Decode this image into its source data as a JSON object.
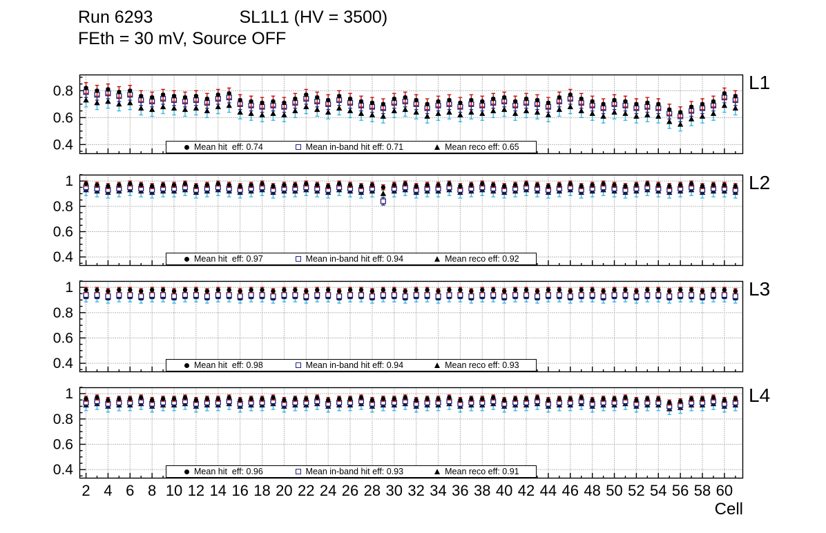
{
  "header": {
    "run": "Run 6293",
    "chamber": "SL1L1 (HV = 3500)",
    "conditions": "FEth = 30 mV, Source OFF"
  },
  "chart_data": {
    "type": "scatter",
    "title": "Run 6293 SL1L1 (HV = 3500) — FEth = 30 mV, Source OFF",
    "xlabel": "Cell",
    "x_start_cell": 2,
    "xtick_labels": [
      2,
      4,
      6,
      8,
      10,
      12,
      14,
      16,
      18,
      20,
      22,
      24,
      26,
      28,
      30,
      32,
      34,
      36,
      38,
      40,
      42,
      44,
      46,
      48,
      50,
      52,
      54,
      56,
      58,
      60
    ],
    "grid": "dotted",
    "series_meta": [
      {
        "key": "hit",
        "name": "Mean hit eff",
        "marker": "filled-circle",
        "marker_color": "#000000",
        "error_color": "#bf0000"
      },
      {
        "key": "inband",
        "name": "Mean in-band hit eff",
        "marker": "open-square",
        "marker_color": "#202078",
        "error_color": "#202078"
      },
      {
        "key": "reco",
        "name": "Mean reco eff",
        "marker": "filled-triangle",
        "marker_color": "#000000",
        "error_color": "#2fb2dd"
      }
    ],
    "panels": [
      {
        "label": "L1",
        "ylim": [
          0.33,
          0.92
        ],
        "yticks": [
          0.4,
          0.6,
          0.8
        ],
        "legend": {
          "hit": "Mean hit  eff: 0.74",
          "inband": "Mean in-band hit eff: 0.71",
          "reco": "Mean reco eff: 0.65"
        },
        "errors": {
          "hit": 0.04,
          "inband": 0.04,
          "reco": 0.05
        },
        "values": {
          "hit": [
            0.82,
            0.8,
            0.81,
            0.79,
            0.8,
            0.76,
            0.75,
            0.77,
            0.76,
            0.75,
            0.76,
            0.74,
            0.77,
            0.78,
            0.73,
            0.72,
            0.71,
            0.72,
            0.71,
            0.74,
            0.77,
            0.75,
            0.73,
            0.76,
            0.74,
            0.72,
            0.71,
            0.7,
            0.74,
            0.75,
            0.73,
            0.7,
            0.72,
            0.73,
            0.71,
            0.73,
            0.72,
            0.74,
            0.75,
            0.72,
            0.74,
            0.73,
            0.71,
            0.75,
            0.77,
            0.74,
            0.72,
            0.7,
            0.73,
            0.72,
            0.7,
            0.71,
            0.7,
            0.66,
            0.64,
            0.68,
            0.7,
            0.72,
            0.78,
            0.76
          ],
          "inband": [
            0.79,
            0.77,
            0.78,
            0.76,
            0.77,
            0.73,
            0.72,
            0.74,
            0.73,
            0.72,
            0.73,
            0.71,
            0.74,
            0.75,
            0.7,
            0.69,
            0.68,
            0.69,
            0.68,
            0.71,
            0.74,
            0.72,
            0.7,
            0.73,
            0.71,
            0.69,
            0.68,
            0.67,
            0.71,
            0.72,
            0.7,
            0.67,
            0.69,
            0.7,
            0.68,
            0.7,
            0.69,
            0.71,
            0.72,
            0.69,
            0.71,
            0.7,
            0.68,
            0.72,
            0.74,
            0.71,
            0.69,
            0.67,
            0.7,
            0.69,
            0.67,
            0.68,
            0.67,
            0.63,
            0.61,
            0.65,
            0.67,
            0.69,
            0.75,
            0.73
          ],
          "reco": [
            0.73,
            0.71,
            0.72,
            0.7,
            0.71,
            0.67,
            0.66,
            0.68,
            0.67,
            0.66,
            0.67,
            0.65,
            0.68,
            0.69,
            0.64,
            0.63,
            0.62,
            0.63,
            0.62,
            0.65,
            0.68,
            0.66,
            0.64,
            0.67,
            0.65,
            0.63,
            0.62,
            0.61,
            0.65,
            0.66,
            0.64,
            0.61,
            0.63,
            0.64,
            0.62,
            0.64,
            0.63,
            0.65,
            0.66,
            0.63,
            0.65,
            0.64,
            0.62,
            0.66,
            0.68,
            0.65,
            0.63,
            0.61,
            0.64,
            0.63,
            0.61,
            0.62,
            0.61,
            0.57,
            0.55,
            0.59,
            0.61,
            0.63,
            0.69,
            0.67
          ]
        }
      },
      {
        "label": "L2",
        "ylim": [
          0.33,
          1.05
        ],
        "yticks": [
          0.4,
          0.6,
          0.8,
          1.0
        ],
        "legend": {
          "hit": "Mean hit  eff: 0.97",
          "inband": "Mean in-band hit eff: 0.94",
          "reco": "Mean reco eff: 0.92"
        },
        "errors": {
          "hit": 0.02,
          "inband": 0.03,
          "reco": 0.045
        },
        "values": {
          "hit": [
            0.98,
            0.97,
            0.96,
            0.97,
            0.98,
            0.97,
            0.96,
            0.97,
            0.97,
            0.98,
            0.96,
            0.97,
            0.98,
            0.97,
            0.96,
            0.97,
            0.98,
            0.96,
            0.97,
            0.97,
            0.98,
            0.97,
            0.96,
            0.98,
            0.97,
            0.96,
            0.97,
            0.95,
            0.97,
            0.98,
            0.96,
            0.97,
            0.97,
            0.98,
            0.96,
            0.97,
            0.98,
            0.97,
            0.96,
            0.97,
            0.98,
            0.97,
            0.96,
            0.97,
            0.98,
            0.96,
            0.97,
            0.98,
            0.97,
            0.96,
            0.97,
            0.98,
            0.97,
            0.96,
            0.97,
            0.98,
            0.96,
            0.97,
            0.97,
            0.96
          ],
          "inband": [
            0.95,
            0.94,
            0.93,
            0.94,
            0.95,
            0.94,
            0.93,
            0.94,
            0.94,
            0.95,
            0.93,
            0.94,
            0.95,
            0.94,
            0.93,
            0.94,
            0.95,
            0.93,
            0.94,
            0.94,
            0.95,
            0.94,
            0.93,
            0.95,
            0.94,
            0.93,
            0.94,
            0.84,
            0.94,
            0.95,
            0.93,
            0.94,
            0.94,
            0.95,
            0.93,
            0.94,
            0.95,
            0.94,
            0.93,
            0.94,
            0.95,
            0.94,
            0.93,
            0.94,
            0.95,
            0.93,
            0.94,
            0.95,
            0.94,
            0.93,
            0.94,
            0.95,
            0.94,
            0.93,
            0.94,
            0.95,
            0.93,
            0.94,
            0.94,
            0.93
          ],
          "reco": [
            0.93,
            0.92,
            0.91,
            0.92,
            0.93,
            0.92,
            0.91,
            0.92,
            0.92,
            0.93,
            0.91,
            0.92,
            0.93,
            0.92,
            0.91,
            0.92,
            0.93,
            0.91,
            0.92,
            0.92,
            0.93,
            0.92,
            0.91,
            0.93,
            0.92,
            0.91,
            0.92,
            0.9,
            0.92,
            0.93,
            0.91,
            0.92,
            0.92,
            0.93,
            0.91,
            0.92,
            0.93,
            0.92,
            0.91,
            0.92,
            0.93,
            0.92,
            0.91,
            0.92,
            0.93,
            0.91,
            0.92,
            0.93,
            0.92,
            0.91,
            0.92,
            0.93,
            0.92,
            0.91,
            0.92,
            0.93,
            0.91,
            0.92,
            0.92,
            0.91
          ]
        }
      },
      {
        "label": "L3",
        "ylim": [
          0.33,
          1.05
        ],
        "yticks": [
          0.4,
          0.6,
          0.8,
          1.0
        ],
        "legend": {
          "hit": "Mean hit  eff: 0.98",
          "inband": "Mean in-band hit eff: 0.94",
          "reco": "Mean reco eff: 0.93"
        },
        "errors": {
          "hit": 0.02,
          "inband": 0.03,
          "reco": 0.045
        },
        "values": {
          "hit": [
            0.98,
            0.98,
            0.97,
            0.98,
            0.98,
            0.97,
            0.98,
            0.98,
            0.97,
            0.98,
            0.98,
            0.97,
            0.98,
            0.98,
            0.97,
            0.98,
            0.98,
            0.97,
            0.98,
            0.98,
            0.97,
            0.98,
            0.98,
            0.97,
            0.98,
            0.98,
            0.97,
            0.98,
            0.98,
            0.97,
            0.98,
            0.98,
            0.97,
            0.98,
            0.98,
            0.97,
            0.98,
            0.98,
            0.97,
            0.98,
            0.98,
            0.97,
            0.98,
            0.98,
            0.97,
            0.98,
            0.98,
            0.97,
            0.98,
            0.98,
            0.97,
            0.98,
            0.98,
            0.97,
            0.98,
            0.98,
            0.97,
            0.98,
            0.98,
            0.97
          ],
          "inband": [
            0.94,
            0.94,
            0.93,
            0.94,
            0.94,
            0.93,
            0.94,
            0.94,
            0.93,
            0.94,
            0.94,
            0.93,
            0.94,
            0.94,
            0.93,
            0.94,
            0.94,
            0.93,
            0.94,
            0.94,
            0.93,
            0.94,
            0.94,
            0.93,
            0.94,
            0.94,
            0.93,
            0.94,
            0.94,
            0.93,
            0.94,
            0.94,
            0.93,
            0.94,
            0.94,
            0.93,
            0.94,
            0.94,
            0.93,
            0.94,
            0.94,
            0.93,
            0.94,
            0.94,
            0.93,
            0.94,
            0.94,
            0.93,
            0.94,
            0.94,
            0.93,
            0.94,
            0.94,
            0.93,
            0.94,
            0.94,
            0.93,
            0.94,
            0.94,
            0.93
          ],
          "reco": [
            0.93,
            0.93,
            0.92,
            0.93,
            0.93,
            0.92,
            0.93,
            0.93,
            0.92,
            0.93,
            0.93,
            0.92,
            0.93,
            0.93,
            0.92,
            0.93,
            0.93,
            0.92,
            0.93,
            0.93,
            0.92,
            0.93,
            0.93,
            0.92,
            0.93,
            0.93,
            0.92,
            0.93,
            0.93,
            0.92,
            0.93,
            0.93,
            0.92,
            0.93,
            0.93,
            0.92,
            0.93,
            0.93,
            0.92,
            0.93,
            0.93,
            0.92,
            0.93,
            0.93,
            0.92,
            0.93,
            0.93,
            0.92,
            0.93,
            0.93,
            0.92,
            0.93,
            0.93,
            0.92,
            0.93,
            0.93,
            0.92,
            0.93,
            0.93,
            0.92
          ]
        }
      },
      {
        "label": "L4",
        "ylim": [
          0.33,
          1.05
        ],
        "yticks": [
          0.4,
          0.6,
          0.8,
          1.0
        ],
        "legend": {
          "hit": "Mean hit  eff: 0.96",
          "inband": "Mean in-band hit eff: 0.93",
          "reco": "Mean reco eff: 0.91"
        },
        "errors": {
          "hit": 0.02,
          "inband": 0.03,
          "reco": 0.045
        },
        "values": {
          "hit": [
            0.96,
            0.97,
            0.95,
            0.96,
            0.96,
            0.97,
            0.95,
            0.96,
            0.96,
            0.97,
            0.95,
            0.96,
            0.96,
            0.97,
            0.95,
            0.96,
            0.96,
            0.97,
            0.95,
            0.96,
            0.96,
            0.97,
            0.95,
            0.96,
            0.96,
            0.97,
            0.95,
            0.96,
            0.96,
            0.97,
            0.95,
            0.96,
            0.96,
            0.97,
            0.95,
            0.96,
            0.96,
            0.97,
            0.95,
            0.96,
            0.96,
            0.97,
            0.95,
            0.96,
            0.96,
            0.97,
            0.95,
            0.96,
            0.96,
            0.97,
            0.95,
            0.96,
            0.96,
            0.93,
            0.94,
            0.96,
            0.96,
            0.97,
            0.95,
            0.96
          ],
          "inband": [
            0.93,
            0.94,
            0.92,
            0.93,
            0.93,
            0.94,
            0.92,
            0.93,
            0.93,
            0.94,
            0.92,
            0.93,
            0.93,
            0.94,
            0.92,
            0.93,
            0.93,
            0.94,
            0.92,
            0.93,
            0.93,
            0.94,
            0.92,
            0.93,
            0.93,
            0.94,
            0.92,
            0.93,
            0.93,
            0.94,
            0.92,
            0.93,
            0.93,
            0.94,
            0.92,
            0.93,
            0.93,
            0.94,
            0.92,
            0.93,
            0.93,
            0.94,
            0.92,
            0.93,
            0.93,
            0.94,
            0.92,
            0.93,
            0.93,
            0.94,
            0.92,
            0.93,
            0.93,
            0.9,
            0.91,
            0.93,
            0.93,
            0.94,
            0.92,
            0.93
          ],
          "reco": [
            0.91,
            0.92,
            0.9,
            0.91,
            0.91,
            0.92,
            0.9,
            0.91,
            0.91,
            0.92,
            0.9,
            0.91,
            0.91,
            0.92,
            0.9,
            0.91,
            0.91,
            0.92,
            0.9,
            0.91,
            0.91,
            0.92,
            0.9,
            0.91,
            0.91,
            0.92,
            0.9,
            0.91,
            0.91,
            0.92,
            0.9,
            0.91,
            0.91,
            0.92,
            0.9,
            0.91,
            0.91,
            0.92,
            0.9,
            0.91,
            0.91,
            0.92,
            0.9,
            0.91,
            0.91,
            0.92,
            0.9,
            0.91,
            0.91,
            0.92,
            0.9,
            0.91,
            0.91,
            0.88,
            0.89,
            0.91,
            0.91,
            0.92,
            0.9,
            0.91
          ]
        }
      }
    ]
  }
}
